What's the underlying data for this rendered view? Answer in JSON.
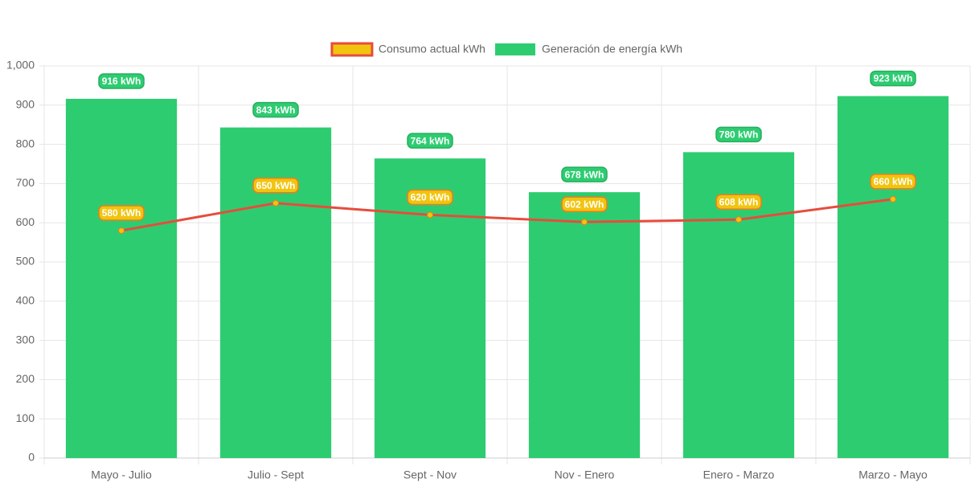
{
  "chart_data": {
    "type": "combo",
    "categories": [
      "Mayo - Julio",
      "Julio - Sept",
      "Sept - Nov",
      "Nov - Enero",
      "Enero - Marzo",
      "Marzo - Mayo"
    ],
    "series": [
      {
        "name": "Consumo actual kWh",
        "type": "line",
        "color": "#e74c3c",
        "point_color": "#f1c40f",
        "values": [
          580,
          650,
          620,
          602,
          608,
          660
        ],
        "value_labels": [
          "580 kWh",
          "650 kWh",
          "620 kWh",
          "602 kWh",
          "608 kWh",
          "660 kWh"
        ]
      },
      {
        "name": "Generación de energía kWh",
        "type": "bar",
        "color": "#2ecc71",
        "values": [
          916,
          843,
          764,
          678,
          780,
          923
        ],
        "value_labels": [
          "916 kWh",
          "843 kWh",
          "764 kWh",
          "678 kWh",
          "780 kWh",
          "923 kWh"
        ]
      }
    ],
    "ylim": [
      0,
      1000
    ],
    "yticks": [
      0,
      100,
      200,
      300,
      400,
      500,
      600,
      700,
      800,
      900,
      {
        "value": 1000,
        "label": "1,000"
      }
    ],
    "grid": true,
    "legend": "top"
  }
}
